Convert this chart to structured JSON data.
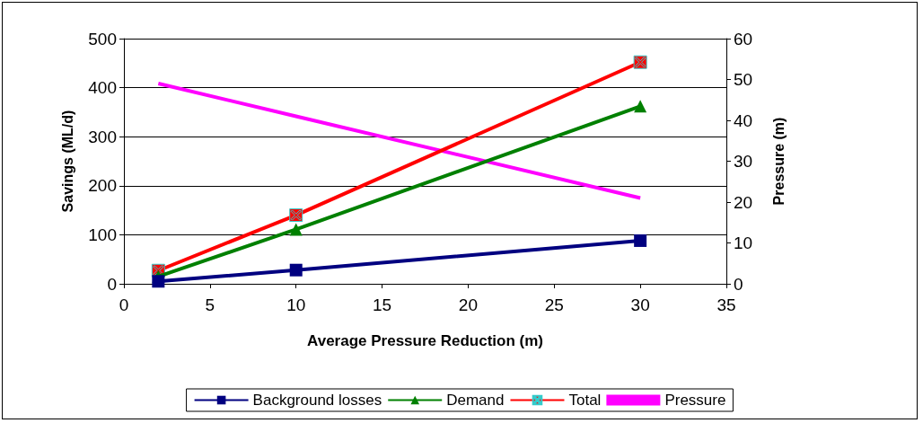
{
  "chart_data": {
    "type": "line",
    "xlabel": "Average Pressure Reduction (m)",
    "ylabel": "Savings (ML/d)",
    "y2label": "Pressure (m)",
    "xlim": [
      0,
      35
    ],
    "xticks": [
      0,
      5,
      10,
      15,
      20,
      25,
      30,
      35
    ],
    "ylim": [
      0,
      500
    ],
    "yticks": [
      0,
      100,
      200,
      300,
      400,
      500
    ],
    "y2lim": [
      0,
      60
    ],
    "y2ticks": [
      0,
      10,
      20,
      30,
      40,
      50,
      60
    ],
    "grid": "y",
    "legend": "bottom",
    "series": [
      {
        "name": "Background losses",
        "color": "#000080",
        "marker": "square",
        "x": [
          2,
          10,
          30
        ],
        "values": [
          5,
          28,
          88
        ]
      },
      {
        "name": "Demand",
        "color": "#008000",
        "marker": "triangle",
        "x": [
          2,
          10,
          30
        ],
        "values": [
          15,
          111,
          362
        ]
      },
      {
        "name": "Total",
        "color": "#ff0000",
        "marker": "cross",
        "x": [
          2,
          10,
          30
        ],
        "values": [
          27,
          140,
          452
        ]
      },
      {
        "name": "Pressure",
        "color": "#ff00ff",
        "marker": "none",
        "axis": "y2",
        "x": [
          2,
          10,
          30
        ],
        "values": [
          49,
          41,
          21
        ]
      }
    ]
  }
}
